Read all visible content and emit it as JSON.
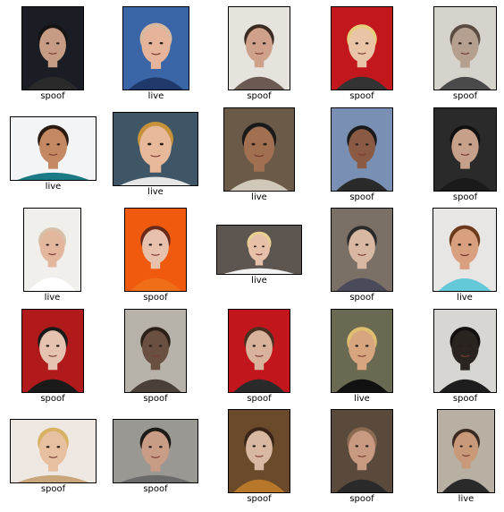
{
  "grid": {
    "cells": [
      {
        "label": "spoof",
        "bg": "#1a1d24",
        "skin": "#c79c84",
        "hair": "#141414",
        "cloth": "#2a2a2a"
      },
      {
        "label": "live",
        "bg": "#3a66a8",
        "skin": "#e5b49a",
        "hair": "#d9b8a0",
        "cloth": "#1f3a6a"
      },
      {
        "label": "spoof",
        "bg": "#e6e3dc",
        "skin": "#cfa08a",
        "hair": "#3a2a22",
        "cloth": "#6b5a52"
      },
      {
        "label": "spoof",
        "bg": "#c2181d",
        "skin": "#eac4a6",
        "hair": "#e7cd7e",
        "cloth": "#333333"
      },
      {
        "label": "spoof",
        "bg": "#d6d3cd",
        "skin": "#b5a08f",
        "hair": "#5a4a40",
        "cloth": "#4a4a4a"
      },
      {
        "label": "live",
        "bg": "#f2f4f6",
        "skin": "#c48862",
        "hair": "#2a1a12",
        "cloth": "#1c7a86"
      },
      {
        "label": "live",
        "bg": "#3f5666",
        "skin": "#e8b89a",
        "hair": "#c7923a",
        "cloth": "#e6e6e6"
      },
      {
        "label": "live",
        "bg": "#6b5a48",
        "skin": "#a07050",
        "hair": "#1a1a1a",
        "cloth": "#d0c8b8"
      },
      {
        "label": "spoof",
        "bg": "#7a8fb4",
        "skin": "#8a5a44",
        "hair": "#1a1a1a",
        "cloth": "#2a2a2a"
      },
      {
        "label": "spoof",
        "bg": "#2a2a2a",
        "skin": "#c7a08a",
        "hair": "#101010",
        "cloth": "#1a1a1a"
      },
      {
        "label": "live",
        "bg": "#f0efec",
        "skin": "#e2b79e",
        "hair": "#d8c0a8",
        "cloth": "#ffffff"
      },
      {
        "label": "spoof",
        "bg": "#ef5a0f",
        "skin": "#e8c1ac",
        "hair": "#6a2a1a",
        "cloth": "#f06e1a"
      },
      {
        "label": "live",
        "bg": "#5d5550",
        "skin": "#e6c0a8",
        "hair": "#e8d090",
        "cloth": "#f2f2f2"
      },
      {
        "label": "spoof",
        "bg": "#7a7066",
        "skin": "#d8b8a2",
        "hair": "#2a2a2a",
        "cloth": "#4a4a5a"
      },
      {
        "label": "live",
        "bg": "#e8e6e4",
        "skin": "#d8a07e",
        "hair": "#6a3a1a",
        "cloth": "#63c8d8"
      },
      {
        "label": "spoof",
        "bg": "#b01a1a",
        "skin": "#e6c2b0",
        "hair": "#1a1a1a",
        "cloth": "#1a1a1a"
      },
      {
        "label": "spoof",
        "bg": "#b8b3aa",
        "skin": "#6a5040",
        "hair": "#2a2018",
        "cloth": "#4a4038"
      },
      {
        "label": "spoof",
        "bg": "#c2161c",
        "skin": "#d8b29a",
        "hair": "#4a3020",
        "cloth": "#2a2a2a"
      },
      {
        "label": "live",
        "bg": "#6a6a52",
        "skin": "#d8a67e",
        "hair": "#e0c070",
        "cloth": "#111111"
      },
      {
        "label": "spoof",
        "bg": "#d8d6d2",
        "skin": "#2a2420",
        "hair": "#141010",
        "cloth": "#1e1e1e"
      },
      {
        "label": "spoof",
        "bg": "#efe8e2",
        "skin": "#e6c0a0",
        "hair": "#d6b262",
        "cloth": "#c8a87a"
      },
      {
        "label": "spoof",
        "bg": "#9a9892",
        "skin": "#c99c86",
        "hair": "#1e1a18",
        "cloth": "#6a6a6a"
      },
      {
        "label": "spoof",
        "bg": "#6a4a2a",
        "skin": "#d8b8a0",
        "hair": "#3a2418",
        "cloth": "#b8782a"
      },
      {
        "label": "spoof",
        "bg": "#5a4a3c",
        "skin": "#c99a82",
        "hair": "#8a6a50",
        "cloth": "#2a2a2a"
      },
      {
        "label": "live",
        "bg": "#b8b0a2",
        "skin": "#c99a7a",
        "hair": "#3a2a22",
        "cloth": "#2a2a2a"
      }
    ]
  }
}
